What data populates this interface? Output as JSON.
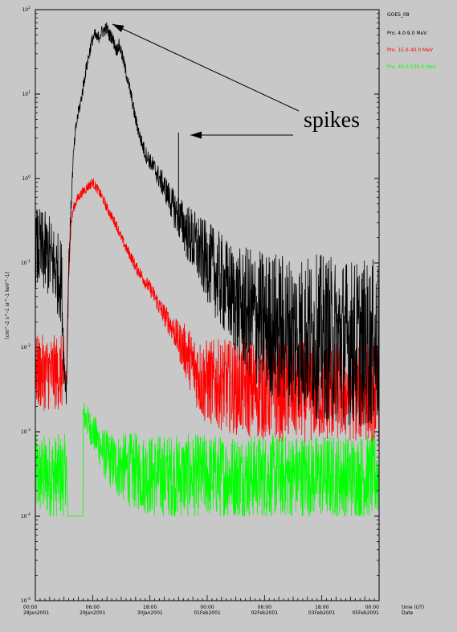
{
  "chart_data": {
    "type": "line",
    "ylabel": "[cm^-2 s^-1 sr^-1 keV^-1]",
    "y_scale": "log",
    "ylim": [
      1e-05,
      100
    ],
    "y_ticks": [
      {
        "value": 100,
        "base": "10",
        "exp": "2"
      },
      {
        "value": 10,
        "base": "10",
        "exp": "1"
      },
      {
        "value": 1,
        "base": "10",
        "exp": "0"
      },
      {
        "value": 0.1,
        "base": "10",
        "exp": "-1"
      },
      {
        "value": 0.01,
        "base": "10",
        "exp": "-2"
      },
      {
        "value": 0.001,
        "base": "10",
        "exp": "-3"
      },
      {
        "value": 0.0001,
        "base": "10",
        "exp": "-4"
      },
      {
        "value": 1e-05,
        "base": "10",
        "exp": "-5"
      }
    ],
    "xlim_hours": [
      0,
      144
    ],
    "x_ticks": [
      {
        "hours": 0,
        "time": "00:00",
        "date": "28Jan2001"
      },
      {
        "hours": 24,
        "time": "06:00",
        "date": "29Jan2001"
      },
      {
        "hours": 48,
        "time": "18:00",
        "date": "30Jan2001"
      },
      {
        "hours": 72,
        "time": "00:00",
        "date": "01Feb2001"
      },
      {
        "hours": 96,
        "time": "06:00",
        "date": "02Feb2001"
      },
      {
        "hours": 120,
        "time": "18:00",
        "date": "03Feb2001"
      },
      {
        "hours": 144,
        "time": "00:00",
        "date": "05Feb2001"
      }
    ],
    "x_axis_title": "time (UT)",
    "x_axis_subtitle": "Date",
    "legend_title": "GOES_08",
    "legend_position": "top-right",
    "series": [
      {
        "name": "Pro. 4.0-9.0 MeV",
        "color": "#000000",
        "x_hours": [
          0,
          6,
          11,
          12,
          13,
          14,
          15,
          16,
          17,
          18,
          19,
          20,
          21,
          22,
          23,
          24,
          25,
          26,
          28,
          30,
          31,
          32,
          33,
          34,
          35,
          36,
          38,
          40,
          42,
          44,
          46,
          48,
          50,
          52,
          54,
          56,
          58,
          60,
          62,
          64,
          66,
          70,
          74,
          76,
          80,
          84,
          86,
          90,
          96,
          100,
          106,
          110,
          115,
          120,
          125,
          130,
          135,
          140,
          144
        ],
        "values": [
          0.15,
          0.12,
          0.06,
          0.006,
          0.003,
          0.1,
          0.5,
          2,
          4,
          6,
          8,
          12,
          18,
          25,
          35,
          45,
          50,
          45,
          55,
          60,
          50,
          48,
          40,
          33,
          38,
          32,
          18,
          10,
          5,
          3,
          2,
          1.6,
          1.3,
          1.0,
          0.8,
          0.6,
          0.45,
          0.35,
          0.28,
          0.22,
          0.18,
          0.12,
          0.09,
          0.07,
          0.05,
          0.035,
          0.03,
          0.025,
          0.02,
          0.018,
          0.016,
          0.015,
          0.014,
          0.013,
          0.012,
          0.012,
          0.011,
          0.011,
          0.011
        ],
        "noise": [
          0.5,
          0.5,
          0.5,
          0.2,
          0.2,
          0.15,
          0.1,
          0.08,
          0.08,
          0.08,
          0.08,
          0.08,
          0.08,
          0.08,
          0.08,
          0.08,
          0.08,
          0.08,
          0.08,
          0.08,
          0.08,
          0.08,
          0.08,
          0.08,
          0.08,
          0.08,
          0.08,
          0.08,
          0.08,
          0.08,
          0.1,
          0.1,
          0.12,
          0.14,
          0.16,
          0.18,
          0.22,
          0.26,
          0.3,
          0.35,
          0.4,
          0.45,
          0.5,
          0.55,
          0.6,
          0.65,
          0.7,
          0.8,
          0.85,
          0.9,
          0.9,
          0.95,
          0.95,
          1.0,
          1.0,
          1.0,
          1.0,
          1.0,
          1.0
        ],
        "spikes": [
          {
            "hours": 60,
            "value": 3.5
          }
        ]
      },
      {
        "name": "Pro. 15.0-40.0 MeV",
        "color": "#ff0000",
        "x_hours": [
          0,
          12,
          13,
          14,
          15,
          16,
          18,
          20,
          22,
          24,
          26,
          28,
          30,
          32,
          34,
          36,
          38,
          40,
          42,
          44,
          46,
          48,
          50,
          52,
          55,
          58,
          60,
          62,
          64,
          66,
          68,
          70,
          80,
          90,
          100,
          110,
          120,
          130,
          144
        ],
        "values": [
          0.005,
          0.005,
          0.004,
          0.08,
          0.3,
          0.45,
          0.6,
          0.7,
          0.8,
          0.9,
          0.75,
          0.6,
          0.45,
          0.35,
          0.28,
          0.2,
          0.15,
          0.12,
          0.09,
          0.075,
          0.06,
          0.05,
          0.04,
          0.03,
          0.022,
          0.016,
          0.012,
          0.01,
          0.008,
          0.006,
          0.005,
          0.004,
          0.0035,
          0.0033,
          0.003,
          0.003,
          0.003,
          0.003,
          0.003
        ],
        "noise": [
          0.45,
          0.45,
          0.3,
          0.1,
          0.08,
          0.06,
          0.06,
          0.06,
          0.06,
          0.06,
          0.06,
          0.06,
          0.06,
          0.06,
          0.06,
          0.06,
          0.06,
          0.07,
          0.07,
          0.08,
          0.08,
          0.09,
          0.1,
          0.12,
          0.14,
          0.18,
          0.22,
          0.3,
          0.35,
          0.4,
          0.45,
          0.5,
          0.55,
          0.6,
          0.6,
          0.6,
          0.6,
          0.6,
          0.6
        ]
      },
      {
        "name": "Pro. 40.0-100.0 MeV",
        "color": "#00ff00",
        "x_hours": [
          0,
          12,
          13,
          14,
          16,
          18,
          20,
          22,
          24,
          26,
          28,
          30,
          34,
          40,
          50,
          60,
          70,
          80,
          100,
          120,
          144
        ],
        "values": [
          0.0003,
          0.0003,
          0.0004,
          0.002,
          0.0025,
          0.002,
          0.0016,
          0.0013,
          0.001,
          0.0008,
          0.0006,
          0.0005,
          0.0004,
          0.00035,
          0.0003,
          0.0003,
          0.0003,
          0.0003,
          0.0003,
          0.0003,
          0.0003
        ],
        "noise": [
          0.5,
          0.5,
          0.4,
          0.15,
          0.15,
          0.15,
          0.18,
          0.2,
          0.22,
          0.25,
          0.28,
          0.32,
          0.38,
          0.45,
          0.5,
          0.5,
          0.5,
          0.5,
          0.5,
          0.5,
          0.5
        ],
        "floor": 0.0001,
        "gap": [
          13,
          20
        ]
      }
    ],
    "annotations": [
      {
        "text": "spikes"
      }
    ]
  }
}
